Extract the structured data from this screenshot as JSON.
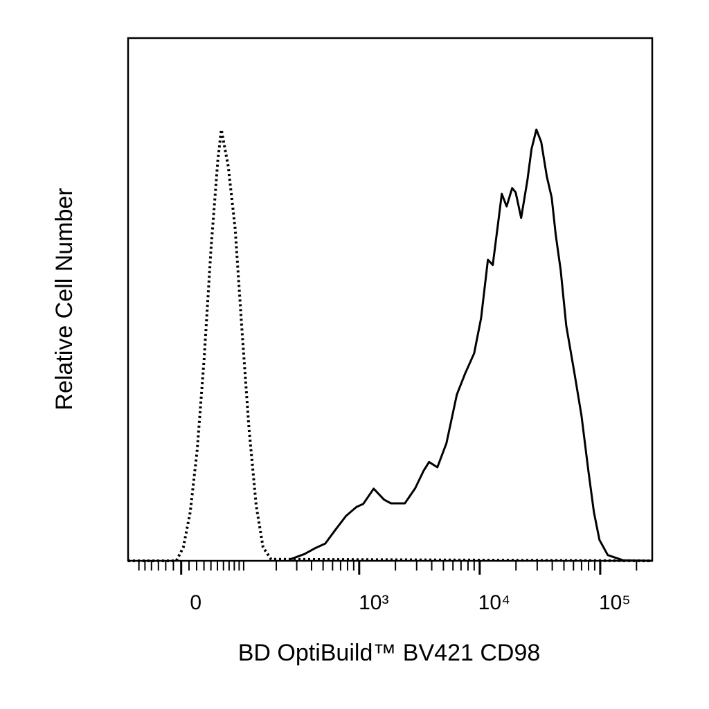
{
  "chart_data": {
    "type": "line",
    "x_label": "BD OptiBuild™ BV421 CD98",
    "y_label": "Relative Cell Number",
    "xscale": "biexponential",
    "xlim": [
      -80,
      270000
    ],
    "ylim": [
      0,
      100
    ],
    "xticks": [
      {
        "value": 0,
        "label": "0"
      },
      {
        "value": 1000,
        "label": "10³"
      },
      {
        "value": 10000,
        "label": "10⁴"
      },
      {
        "value": 100000,
        "label": "10⁵"
      }
    ],
    "xminorticks": [
      -60,
      -50,
      -40,
      -30,
      -20,
      -10,
      10,
      20,
      30,
      40,
      50,
      60,
      70,
      80,
      90,
      100,
      200,
      300,
      400,
      500,
      600,
      700,
      800,
      900,
      2000,
      3000,
      4000,
      5000,
      6000,
      7000,
      8000,
      9000,
      20000,
      30000,
      40000,
      50000,
      60000,
      70000,
      80000,
      90000,
      200000
    ],
    "series": [
      {
        "color": "#000000",
        "dashed": true,
        "x": [
          -80,
          -6.2,
          2.7,
          11.5,
          20.7,
          30.1,
          40.1,
          50.8,
          56.4,
          68.4,
          81.6,
          96.5,
          113,
          132,
          152.5,
          180,
          270000
        ],
        "values": [
          0,
          0,
          2.6,
          9.3,
          21.2,
          38.4,
          59.6,
          76.8,
          82.5,
          75.5,
          63.6,
          43.7,
          25.2,
          10.6,
          2.6,
          0.3,
          0
        ]
      },
      {
        "color": "#000000",
        "dashed": false,
        "x": [
          265,
          349,
          427,
          521,
          637,
          777,
          948,
          1082,
          1319,
          1609,
          1837,
          2392,
          2919,
          3420,
          3801,
          4456,
          5297,
          6460,
          7568,
          8991,
          10267,
          11710,
          12839,
          14275,
          15250,
          16727,
          18597,
          19866,
          22084,
          24876,
          26920,
          29539,
          32418,
          36045,
          39546,
          42805,
          46967,
          52211,
          61189,
          69873,
          79759,
          88644,
          98530,
          115564,
          154575,
          269271
        ],
        "values": [
          0.3,
          1.3,
          2.4,
          3.3,
          6.0,
          8.6,
          10.3,
          10.9,
          13.8,
          11.7,
          11.0,
          11.0,
          13.9,
          17.2,
          18.9,
          17.9,
          22.5,
          31.8,
          35.8,
          39.7,
          46.4,
          57.6,
          56.6,
          64.9,
          70.2,
          67.8,
          71.3,
          70.5,
          65.6,
          72.8,
          78.8,
          82.5,
          80.1,
          73.5,
          69.5,
          62.3,
          55.6,
          45.0,
          35.8,
          27.8,
          17.2,
          9.3,
          4.0,
          1.1,
          0.1,
          0
        ]
      }
    ]
  }
}
